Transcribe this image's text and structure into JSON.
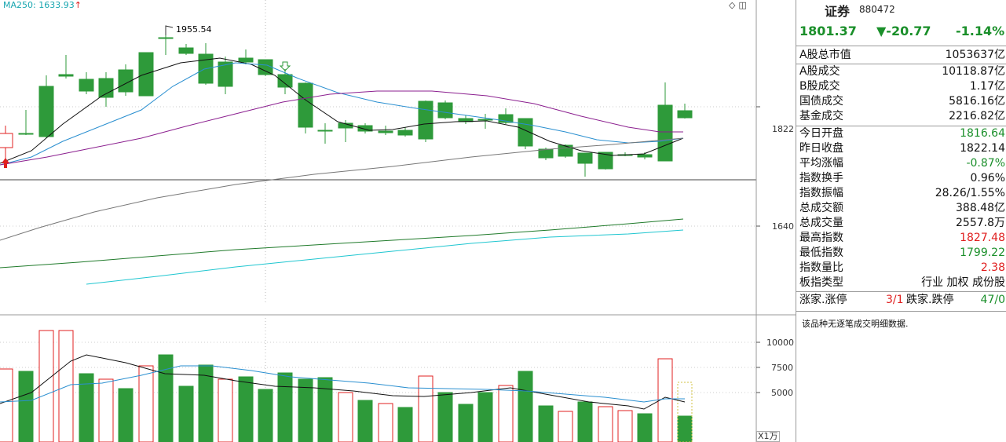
{
  "chart": {
    "ma_label": "MA250: 1633.93",
    "ma_arrow": "↑",
    "high_label": "1955.54",
    "price_ticks": [
      "1822",
      "1640"
    ],
    "volume_ticks": [
      "10000",
      "7500",
      "5000"
    ],
    "volume_unit": "X1万",
    "icons": [
      "diamond-icon",
      "settings-icon"
    ],
    "colors": {
      "up": "#e02020",
      "down": "#2e9a3a",
      "ma_black": "#111111",
      "ma_blue": "#2a8fd0",
      "ma_purple": "#8b1f8f",
      "ma_gray": "#777777",
      "ma_green": "#1f7a2a",
      "ma_cyan": "#1fc6d0"
    }
  },
  "panel": {
    "title": "证券",
    "code": "880472",
    "price": "1801.37",
    "change": "▼-20.77",
    "change_pct": "-1.14%",
    "market_cap_label": "A股总市值",
    "market_cap_value": "1053637亿",
    "trade_rows": [
      {
        "label": "A股成交",
        "value": "10118.87亿"
      },
      {
        "label": "B股成交",
        "value": "1.17亿"
      },
      {
        "label": "国债成交",
        "value": "5816.16亿"
      },
      {
        "label": "基金成交",
        "value": "2216.82亿"
      }
    ],
    "stats_rows": [
      {
        "label": "今日开盘",
        "value": "1816.64",
        "color": "green"
      },
      {
        "label": "昨日收盘",
        "value": "1822.14",
        "color": ""
      },
      {
        "label": "平均涨幅",
        "value": "-0.87%",
        "color": "green"
      },
      {
        "label": "指数换手",
        "value": "0.96%",
        "color": ""
      },
      {
        "label": "指数振幅",
        "value": "28.26/1.55%",
        "color": ""
      },
      {
        "label": "总成交额",
        "value": "388.48亿",
        "color": ""
      },
      {
        "label": "总成交量",
        "value": "2557.8万",
        "color": ""
      },
      {
        "label": "最高指数",
        "value": "1827.48",
        "color": "red"
      },
      {
        "label": "最低指数",
        "value": "1799.22",
        "color": "green"
      },
      {
        "label": "指数量比",
        "value": "2.38",
        "color": "red"
      },
      {
        "label": "板指类型",
        "value": "行业 加权 成份股",
        "color": ""
      }
    ],
    "up_label": "涨家.涨停",
    "up_value": "3/1",
    "down_label": "跌家.跌停",
    "down_value": "47/0",
    "message": "该品种无逐笔成交明细数据."
  }
}
